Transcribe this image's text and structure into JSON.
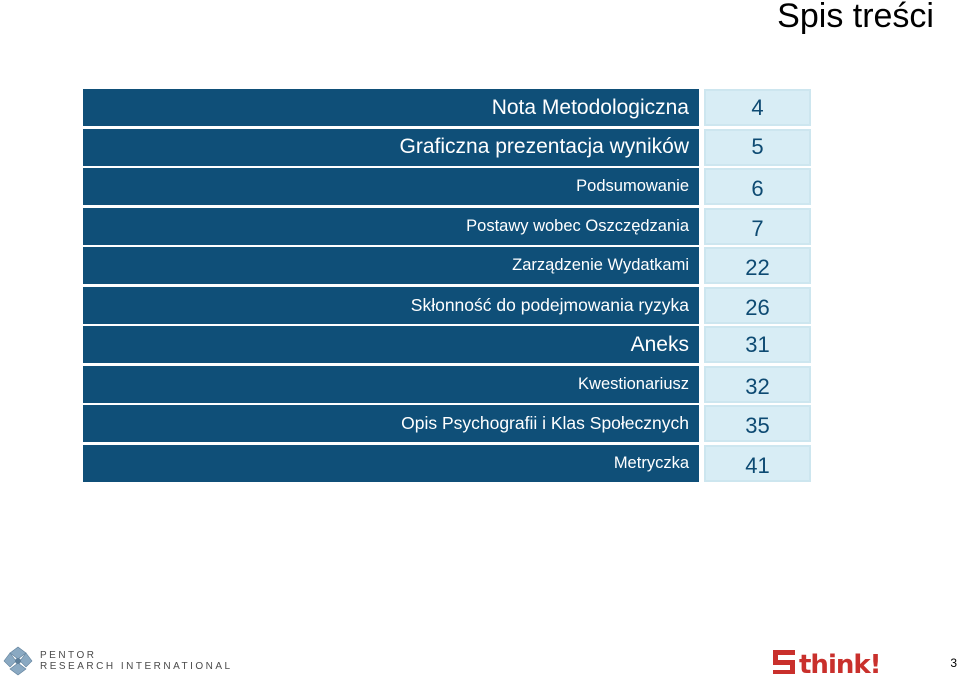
{
  "page_title": "Spis treści",
  "toc": [
    {
      "label": "Nota Metodologiczna",
      "page": "4",
      "size": "big"
    },
    {
      "label": "Graficzna prezentacja wyników",
      "page": "5",
      "size": "big"
    },
    {
      "label": "Podsumowanie",
      "page": "6",
      "size": "small"
    },
    {
      "label": "Postawy wobec Oszczędzania",
      "page": "7",
      "size": "small"
    },
    {
      "label": "Zarządzenie Wydatkami",
      "page": "22",
      "size": "small"
    },
    {
      "label": "Skłonność do podejmowania ryzyka",
      "page": "26",
      "size": "med"
    },
    {
      "label": "Aneks",
      "page": "31",
      "size": "big"
    },
    {
      "label": "Kwestionariusz",
      "page": "32",
      "size": "small"
    },
    {
      "label": "Opis Psychografii i Klas Społecznych",
      "page": "35",
      "size": "med"
    },
    {
      "label": "Metryczka",
      "page": "41",
      "size": "small"
    }
  ],
  "footer": {
    "left_logo_text": "PENTOR RESEARCH INTERNATIONAL",
    "left_logo_line1": "PENTOR",
    "left_logo_line2": "RESEARCH INTERNATIONAL",
    "right_logo_text": "think!",
    "page_number": "3"
  }
}
